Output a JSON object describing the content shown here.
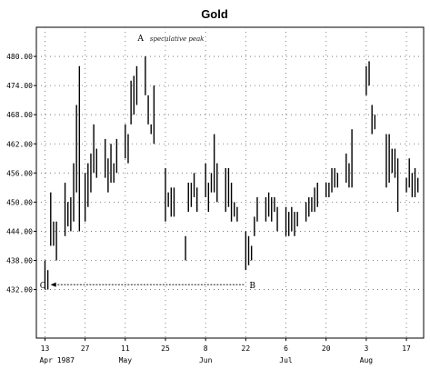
{
  "chart_data": {
    "type": "ohlc",
    "title": "Gold",
    "xlabel": "",
    "ylabel": "",
    "ylim": [
      422,
      486
    ],
    "yticks": [
      "480.00",
      "474.00",
      "468.00",
      "462.00",
      "456.00",
      "450.00",
      "444.00",
      "438.00",
      "432.00"
    ],
    "ytick_values": [
      480,
      474,
      468,
      462,
      456,
      450,
      444,
      438,
      432
    ],
    "xticks": [
      {
        "label": "13",
        "day": 0
      },
      {
        "label": "27",
        "day": 14
      },
      {
        "label": "11",
        "day": 28
      },
      {
        "label": "25",
        "day": 42
      },
      {
        "label": "8",
        "day": 56
      },
      {
        "label": "22",
        "day": 70
      },
      {
        "label": "6",
        "day": 84
      },
      {
        "label": "20",
        "day": 98
      },
      {
        "label": "3",
        "day": 112
      },
      {
        "label": "17",
        "day": 126
      }
    ],
    "months": [
      {
        "label": "Apr 1987",
        "day": 0
      },
      {
        "label": "May",
        "day": 28
      },
      {
        "label": "Jun",
        "day": 56
      },
      {
        "label": "Jul",
        "day": 84
      },
      {
        "label": "Aug",
        "day": 112
      }
    ],
    "grid": true,
    "bars_day_high_low": [
      [
        0,
        438,
        432
      ],
      [
        1,
        436,
        432
      ],
      [
        2,
        452,
        441
      ],
      [
        3,
        446,
        441
      ],
      [
        4,
        446,
        438
      ],
      [
        7,
        454,
        443
      ],
      [
        8,
        450,
        445
      ],
      [
        9,
        451,
        444
      ],
      [
        10,
        458,
        446
      ],
      [
        11,
        470,
        452
      ],
      [
        12,
        478,
        444
      ],
      [
        14,
        456,
        446
      ],
      [
        15,
        458,
        449
      ],
      [
        16,
        460,
        452
      ],
      [
        17,
        466,
        456
      ],
      [
        18,
        461,
        455
      ],
      [
        21,
        463,
        455
      ],
      [
        22,
        459,
        452
      ],
      [
        23,
        462,
        454
      ],
      [
        24,
        458,
        454
      ],
      [
        25,
        463,
        456
      ],
      [
        28,
        466,
        459
      ],
      [
        29,
        464,
        458
      ],
      [
        30,
        475,
        466
      ],
      [
        31,
        476,
        468
      ],
      [
        32,
        478,
        470
      ],
      [
        35,
        480,
        472
      ],
      [
        36,
        472,
        466
      ],
      [
        37,
        466,
        464
      ],
      [
        38,
        474,
        462
      ],
      [
        42,
        457,
        446
      ],
      [
        43,
        452,
        449
      ],
      [
        44,
        453,
        447
      ],
      [
        45,
        453,
        447
      ],
      [
        49,
        443,
        438
      ],
      [
        50,
        454,
        448
      ],
      [
        51,
        454,
        449
      ],
      [
        52,
        456,
        451
      ],
      [
        53,
        453,
        448
      ],
      [
        56,
        458,
        451
      ],
      [
        57,
        454,
        448
      ],
      [
        58,
        456,
        452
      ],
      [
        59,
        464,
        452
      ],
      [
        60,
        458,
        450
      ],
      [
        63,
        457,
        448
      ],
      [
        64,
        457,
        449
      ],
      [
        65,
        454,
        446
      ],
      [
        66,
        450,
        447
      ],
      [
        67,
        449,
        446
      ],
      [
        70,
        444,
        436
      ],
      [
        71,
        443,
        437
      ],
      [
        72,
        441,
        438
      ],
      [
        73,
        447,
        443
      ],
      [
        74,
        451,
        446
      ],
      [
        77,
        451,
        446
      ],
      [
        78,
        452,
        447
      ],
      [
        79,
        451,
        446
      ],
      [
        80,
        451,
        448
      ],
      [
        81,
        449,
        444
      ],
      [
        84,
        449,
        443
      ],
      [
        85,
        448,
        443
      ],
      [
        86,
        449,
        444
      ],
      [
        87,
        448,
        443
      ],
      [
        88,
        448,
        445
      ],
      [
        91,
        450,
        446
      ],
      [
        92,
        451,
        447
      ],
      [
        93,
        451,
        448
      ],
      [
        94,
        453,
        448
      ],
      [
        95,
        454,
        449
      ],
      [
        98,
        454,
        451
      ],
      [
        99,
        454,
        451
      ],
      [
        100,
        457,
        452
      ],
      [
        101,
        457,
        453
      ],
      [
        102,
        456,
        453
      ],
      [
        105,
        460,
        454
      ],
      [
        106,
        458,
        453
      ],
      [
        107,
        465,
        453
      ],
      [
        112,
        478,
        472
      ],
      [
        113,
        479,
        474
      ],
      [
        114,
        470,
        464
      ],
      [
        115,
        468,
        465
      ],
      [
        119,
        464,
        453
      ],
      [
        120,
        464,
        454
      ],
      [
        121,
        461,
        456
      ],
      [
        122,
        461,
        455
      ],
      [
        123,
        459,
        448
      ],
      [
        126,
        455,
        452
      ],
      [
        127,
        459,
        453
      ],
      [
        128,
        456,
        451
      ],
      [
        129,
        457,
        451
      ],
      [
        130,
        455,
        452
      ]
    ],
    "annotations": [
      {
        "label": "A",
        "day": 35,
        "value": 480,
        "note": "speculative peak"
      },
      {
        "label": "B",
        "day": 70,
        "value": 433
      },
      {
        "label": "C",
        "day": 1,
        "value": 433
      }
    ]
  }
}
